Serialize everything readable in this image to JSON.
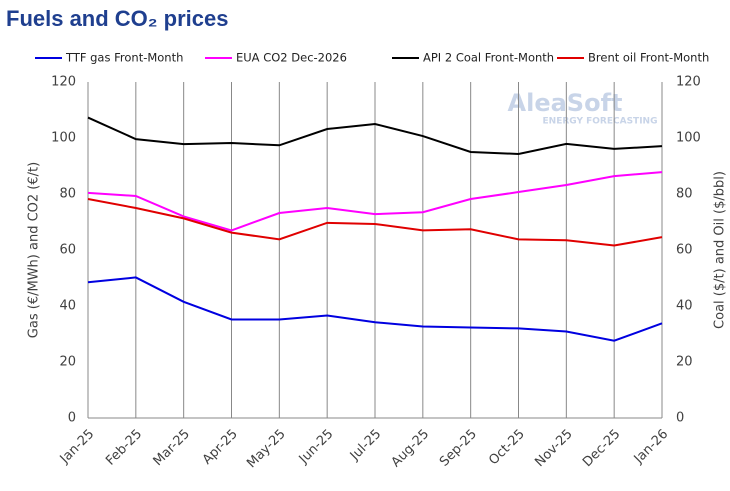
{
  "chart_data": {
    "type": "line",
    "title": "Fuels and CO₂ prices",
    "watermark": {
      "name": "AleaSoft",
      "tagline": "ENERGY FORECASTING"
    },
    "categories": [
      "Jan-25",
      "Feb-25",
      "Mar-25",
      "Apr-25",
      "May-25",
      "Jun-25",
      "Jul-25",
      "Aug-25",
      "Sep-25",
      "Oct-25",
      "Nov-25",
      "Dec-25",
      "Jan-26"
    ],
    "series": [
      {
        "name": "TTF gas Front-Month",
        "color": "#0000e0",
        "values": [
          48.5,
          50.2,
          41.5,
          35.2,
          35.2,
          36.6,
          34.2,
          32.7,
          32.3,
          32.0,
          30.9,
          27.6,
          33.8
        ]
      },
      {
        "name": "EUA CO2 Dec-2026",
        "color": "#ff00ff",
        "values": [
          80.4,
          79.3,
          72.0,
          67.0,
          73.2,
          75.0,
          72.8,
          73.5,
          78.2,
          80.7,
          83.2,
          86.4,
          87.8
        ]
      },
      {
        "name": "API 2 Coal Front-Month",
        "color": "#000000",
        "axis": "y2",
        "values": [
          107.3,
          99.6,
          97.8,
          98.2,
          97.4,
          103.2,
          105.0,
          100.7,
          95.0,
          94.3,
          97.9,
          96.1,
          97.1
        ]
      },
      {
        "name": "Brent oil Front-Month",
        "color": "#e00000",
        "axis": "y2",
        "values": [
          78.2,
          75.0,
          71.3,
          66.2,
          63.8,
          69.7,
          69.3,
          67.0,
          67.4,
          63.8,
          63.5,
          61.6,
          64.6
        ]
      }
    ],
    "ylabel": "Gas (€/MWh) and CO2 (€/t)",
    "y2label": "Coal ($/t) and Oil ($/bbl)",
    "ylim": [
      0,
      120
    ],
    "yticks": [
      0,
      20,
      40,
      60,
      80,
      100,
      120
    ],
    "y2lim": [
      0,
      120
    ],
    "y2ticks": [
      0,
      20,
      40,
      60,
      80,
      100,
      120
    ],
    "grid": true,
    "legend": "top"
  }
}
